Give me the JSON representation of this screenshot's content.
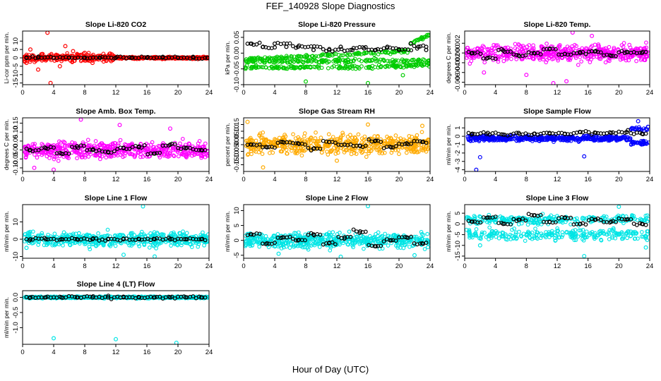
{
  "title": "FEF_140928  Slope Diagnostics",
  "xlabel": "Hour of Day (UTC)",
  "chart_data": [
    {
      "type": "scatter",
      "title": "Slope Li-820 CO2",
      "ylabel": "Li-cor ppm per min.",
      "xlim": [
        0,
        24
      ],
      "ylim": [
        -16,
        16
      ],
      "xticks": [
        0,
        4,
        8,
        12,
        16,
        20,
        24
      ],
      "yticks": [
        -15,
        -10,
        -5,
        0,
        5,
        10
      ],
      "ytick_labels": [
        "-15",
        "-10",
        "-5",
        "0",
        "5",
        "10"
      ],
      "color": "#ff0000",
      "series": [
        {
          "name": "scatter",
          "x": [
            1.0,
            3.2,
            4.8,
            6.5,
            9.0,
            11.5,
            3.6,
            2.0,
            5.5,
            8.0,
            0.5
          ],
          "y": [
            5.0,
            15.0,
            -5.0,
            4.0,
            -3.0,
            2.0,
            -15.0,
            -7.0,
            7.0,
            3.0,
            -3.0
          ]
        },
        {
          "name": "mean",
          "x": [
            0.5,
            2,
            4,
            6,
            8,
            10,
            12,
            14,
            16,
            18,
            20,
            22,
            23.8
          ],
          "y": [
            0.2,
            0.1,
            0.0,
            0.2,
            0.1,
            0.0,
            0.1,
            0.0,
            0.0,
            0.1,
            0.0,
            0.1,
            0.0
          ]
        }
      ]
    },
    {
      "type": "scatter",
      "title": "Slope Li-820 Pressure",
      "ylabel": "kPa per min.",
      "xlim": [
        0,
        24
      ],
      "ylim": [
        -0.1,
        0.07
      ],
      "xticks": [
        0,
        4,
        8,
        12,
        16,
        20,
        24
      ],
      "yticks": [
        -0.1,
        -0.05,
        0.0,
        0.05
      ],
      "ytick_labels": [
        "-0.10",
        "-0.05",
        "0.00",
        "0.05"
      ],
      "color": "#00cc00",
      "series": [
        {
          "name": "scatter",
          "x": [
            8.0,
            16.0,
            1.6,
            4.0,
            20.5
          ],
          "y": [
            -0.09,
            -0.095,
            -0.04,
            -0.03,
            -0.07
          ]
        },
        {
          "name": "mean",
          "x": [
            1,
            2.5,
            4,
            5.5,
            7,
            9,
            11,
            12.5,
            14,
            15.5,
            17,
            18.5,
            20,
            21.5,
            22.5,
            23.5
          ],
          "y": [
            0.03,
            0.02,
            0.03,
            0.02,
            0.02,
            0.01,
            0.01,
            0.02,
            0.01,
            0.015,
            0.01,
            0.02,
            0.01,
            0.03,
            0.02,
            0.01
          ]
        }
      ]
    },
    {
      "type": "scatter",
      "title": "Slope Li-820 Temp.",
      "ylabel": "degrees C per min.",
      "xlim": [
        0,
        24
      ],
      "ylim": [
        -0.0065,
        0.0045
      ],
      "xticks": [
        0,
        4,
        8,
        12,
        16,
        20,
        24
      ],
      "yticks": [
        -0.006,
        -0.004,
        -0.002,
        0.0,
        0.002
      ],
      "ytick_labels": [
        "-0.006",
        "-0.004",
        "-0.002",
        "0.000",
        "0.002"
      ],
      "color": "#ff00ff",
      "series": [
        {
          "name": "scatter",
          "x": [
            14.0,
            11.5,
            2.5,
            8.0,
            16.5,
            13.2
          ],
          "y": [
            0.0042,
            -0.0062,
            -0.004,
            -0.0045,
            0.0035,
            -0.0058
          ]
        },
        {
          "name": "mean",
          "x": [
            1,
            3,
            5,
            7,
            9,
            11,
            13,
            15,
            17,
            19,
            21,
            23
          ],
          "y": [
            0.0,
            -0.001,
            0.0005,
            -0.0005,
            0.0,
            0.0008,
            -0.0002,
            0.0,
            0.0004,
            -0.0006,
            0.0002,
            0.0
          ]
        }
      ]
    },
    {
      "type": "scatter",
      "title": "Slope Amb. Box Temp.",
      "ylabel": "degrees C per min.",
      "xlim": [
        0,
        24
      ],
      "ylim": [
        -0.12,
        0.18
      ],
      "xticks": [
        0,
        4,
        8,
        12,
        16,
        20,
        24
      ],
      "yticks": [
        -0.1,
        -0.05,
        0.0,
        0.05,
        0.1,
        0.15
      ],
      "ytick_labels": [
        "-0.10",
        "-0.05",
        "0.00",
        "0.05",
        "0.10",
        "0.15"
      ],
      "color": "#ff00ff",
      "series": [
        {
          "name": "scatter",
          "x": [
            7.5,
            4.0,
            1.5,
            19.0,
            12.5
          ],
          "y": [
            0.17,
            -0.11,
            -0.1,
            0.12,
            0.14
          ]
        },
        {
          "name": "mean",
          "x": [
            1,
            3,
            5,
            7,
            9,
            11,
            13,
            15,
            17,
            19,
            21,
            23
          ],
          "y": [
            0.0,
            0.01,
            -0.02,
            0.02,
            0.0,
            -0.01,
            0.01,
            0.02,
            -0.02,
            0.03,
            0.01,
            0.0
          ]
        }
      ]
    },
    {
      "type": "scatter",
      "title": "Slope Gas Stream RH",
      "ylabel": "percent per min.",
      "xlim": [
        0,
        24
      ],
      "ylim": [
        -0.2,
        0.2
      ],
      "xticks": [
        0,
        4,
        8,
        12,
        16,
        20,
        24
      ],
      "yticks": [
        -0.15,
        -0.1,
        -0.05,
        0.0,
        0.05,
        0.1,
        0.15
      ],
      "ytick_labels": [
        "-0.15",
        "-0.10",
        "-0.05",
        "0.00",
        "0.05",
        "0.10",
        "0.15"
      ],
      "color": "#ffaa00",
      "series": [
        {
          "name": "scatter",
          "x": [
            0.5,
            16.0,
            23.0,
            2.5,
            12.0
          ],
          "y": [
            0.17,
            0.15,
            0.14,
            -0.17,
            -0.12
          ]
        },
        {
          "name": "mean",
          "x": [
            1,
            3,
            5,
            7,
            9,
            11,
            13,
            15,
            17,
            19,
            21,
            23
          ],
          "y": [
            0.0,
            -0.02,
            0.02,
            0.01,
            -0.03,
            0.02,
            0.0,
            -0.01,
            0.03,
            -0.02,
            0.01,
            0.02
          ]
        }
      ]
    },
    {
      "type": "scatter",
      "title": "Slope Sample Flow",
      "ylabel": "ml/min per min.",
      "xlim": [
        0,
        24
      ],
      "ylim": [
        -4.2,
        2.2
      ],
      "xticks": [
        0,
        4,
        8,
        12,
        16,
        20,
        24
      ],
      "yticks": [
        -4,
        -3,
        -2,
        -1,
        0,
        1
      ],
      "ytick_labels": [
        "-4",
        "-3",
        "-2",
        "-1",
        "0",
        "1"
      ],
      "color": "#0000ff",
      "series": [
        {
          "name": "scatter",
          "x": [
            1.5,
            15.5,
            2.0,
            22.5
          ],
          "y": [
            -4.0,
            -2.4,
            -2.5,
            1.8
          ]
        },
        {
          "name": "mean",
          "x": [
            1,
            3,
            5,
            7,
            9,
            11,
            13,
            15,
            17,
            19,
            21,
            23
          ],
          "y": [
            0.3,
            0.4,
            0.2,
            0.4,
            0.3,
            0.4,
            0.3,
            0.5,
            0.4,
            0.4,
            0.5,
            0.3
          ]
        }
      ]
    },
    {
      "type": "scatter",
      "title": "Slope Line 1 Flow",
      "ylabel": "ml/min per min.",
      "xlim": [
        0,
        24
      ],
      "ylim": [
        -11,
        20
      ],
      "xticks": [
        0,
        4,
        8,
        12,
        16,
        20,
        24
      ],
      "yticks": [
        -10,
        0,
        10
      ],
      "ytick_labels": [
        "-10",
        "0",
        "10"
      ],
      "color": "#00e5e5",
      "series": [
        {
          "name": "scatter",
          "x": [
            15.5,
            17.0,
            13.0,
            0.5
          ],
          "y": [
            19.0,
            -10.0,
            -9.0,
            -5.0
          ]
        },
        {
          "name": "mean",
          "x": [
            1,
            3,
            5,
            7,
            9,
            11,
            13,
            15,
            17,
            19,
            21,
            23
          ],
          "y": [
            0.0,
            0.0,
            0.0,
            0.0,
            0.0,
            0.0,
            0.0,
            0.0,
            0.0,
            0.0,
            0.0,
            0.0
          ]
        }
      ]
    },
    {
      "type": "scatter",
      "title": "Slope Line 2 Flow",
      "ylabel": "ml/min per min.",
      "xlim": [
        0,
        24
      ],
      "ylim": [
        -6,
        12
      ],
      "xticks": [
        0,
        4,
        8,
        12,
        16,
        20,
        24
      ],
      "yticks": [
        -5,
        0,
        5,
        10
      ],
      "ytick_labels": [
        "-5",
        "0",
        "5",
        "10"
      ],
      "color": "#00e5e5",
      "series": [
        {
          "name": "scatter",
          "x": [
            16.0,
            12.5,
            4.5,
            22.0
          ],
          "y": [
            11.5,
            -5.5,
            -4.5,
            -5.0
          ]
        },
        {
          "name": "mean",
          "x": [
            1,
            3,
            5,
            7,
            9,
            11,
            13,
            15,
            17,
            19,
            21,
            23
          ],
          "y": [
            2.0,
            -1.0,
            1.0,
            0.0,
            2.0,
            -1.0,
            1.0,
            3.0,
            -2.0,
            0.0,
            1.0,
            -1.0
          ]
        }
      ]
    },
    {
      "type": "scatter",
      "title": "Slope Line 3 Flow",
      "ylabel": "ml/min per min.",
      "xlim": [
        0,
        24
      ],
      "ylim": [
        -16,
        9
      ],
      "xticks": [
        0,
        4,
        8,
        12,
        16,
        20,
        24
      ],
      "yticks": [
        -15,
        -10,
        -5,
        0,
        5
      ],
      "ytick_labels": [
        "-15",
        "-10",
        "-5",
        "0",
        "5"
      ],
      "color": "#00e5e5",
      "series": [
        {
          "name": "scatter",
          "x": [
            20.0,
            15.5,
            2.0,
            23.5
          ],
          "y": [
            8.0,
            -15.0,
            -10.0,
            -11.0
          ]
        },
        {
          "name": "mean",
          "x": [
            1,
            3,
            5,
            7,
            9,
            11,
            13,
            15,
            17,
            19,
            21,
            23
          ],
          "y": [
            1.0,
            3.0,
            0.0,
            2.0,
            4.0,
            1.0,
            3.0,
            0.0,
            2.0,
            1.0,
            2.0,
            0.0
          ]
        }
      ]
    },
    {
      "type": "scatter",
      "title": "Slope Line 4 (LT) Flow",
      "ylabel": "ml/min per min.",
      "xlim": [
        0,
        24
      ],
      "ylim": [
        -1.55,
        0.22
      ],
      "xticks": [
        0,
        4,
        8,
        12,
        16,
        20,
        24
      ],
      "yticks": [
        -1.0,
        -0.5,
        0.0
      ],
      "ytick_labels": [
        "-1.0",
        "-0.5",
        "0.0"
      ],
      "color": "#00e5e5",
      "series": [
        {
          "name": "scatter",
          "x": [
            4.0,
            12.0,
            19.8
          ],
          "y": [
            -1.35,
            -1.38,
            -1.5
          ]
        },
        {
          "name": "mean",
          "x": [
            1,
            3,
            5,
            7,
            9,
            11,
            13,
            15,
            17,
            19,
            21,
            23
          ],
          "y": [
            0.0,
            0.0,
            0.0,
            0.0,
            0.0,
            0.0,
            0.0,
            0.0,
            0.0,
            0.0,
            0.0,
            0.0
          ]
        }
      ]
    }
  ]
}
